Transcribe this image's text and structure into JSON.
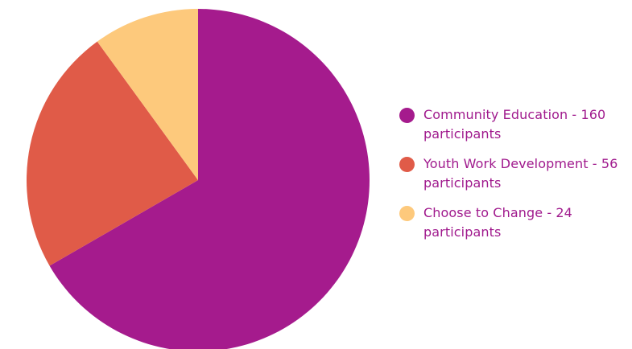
{
  "chart_data": {
    "type": "pie",
    "title": "",
    "slices": [
      {
        "label": "Community Education - 160 participants",
        "value": 160,
        "color": "#a51b8d"
      },
      {
        "label": "Youth Work Development - 56 participants",
        "value": 56,
        "color": "#e05b48"
      },
      {
        "label": "Choose to Change - 24 participants",
        "value": 24,
        "color": "#fdc97c"
      }
    ],
    "start_angle": "12 o'clock",
    "direction": "clockwise",
    "legend_placement": "right"
  }
}
